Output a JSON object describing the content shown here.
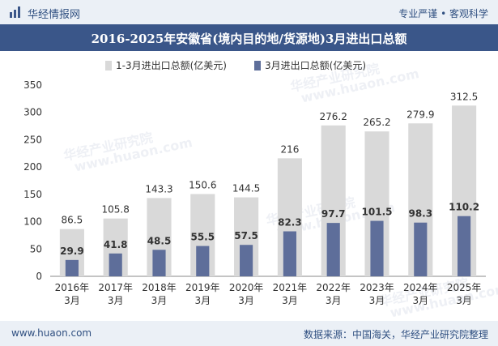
{
  "header": {
    "brand": "华经情报网",
    "tagline": "专业严谨 • 客观科学"
  },
  "title_bar": {
    "title": "2016-2025年安徽省(境内目的地/货源地)3月进出口总额"
  },
  "footer": {
    "website": "www.huaon.com",
    "source": "数据来源：中国海关，华经产业研究院整理"
  },
  "watermark": {
    "text_cn": "华经产业研究院",
    "text_url": "www.huaon.com"
  },
  "colors": {
    "total_series": "#d9d9d9",
    "march_series": "#5e6e9a",
    "title_bg": "#3a5689",
    "header_bg": "#ebf0f6"
  },
  "chart_data": {
    "type": "bar",
    "title": "2016-2025年安徽省(境内目的地/货源地)3月进出口总额",
    "categories": [
      "2016年\n3月",
      "2017年\n3月",
      "2018年\n3月",
      "2019年\n3月",
      "2020年\n3月",
      "2021年\n3月",
      "2022年\n3月",
      "2023年\n3月",
      "2024年\n3月",
      "2025年\n3月"
    ],
    "series": [
      {
        "name": "1-3月进出口总额(亿美元)",
        "values": [
          86.5,
          105.8,
          143.3,
          150.6,
          144.5,
          216,
          276.2,
          265.2,
          279.9,
          312.5
        ],
        "labels": [
          "86.5",
          "105.8",
          "143.3",
          "150.6",
          "144.5",
          "216",
          "276.2",
          "265.2",
          "279.9",
          "312.5"
        ],
        "color": "#d9d9d9"
      },
      {
        "name": "3月进出口总额(亿美元)",
        "values": [
          29.9,
          41.8,
          48.5,
          55.5,
          57.5,
          82.3,
          97.7,
          101.5,
          98.3,
          110.2
        ],
        "labels": [
          "29.9",
          "41.8",
          "48.5",
          "55.5",
          "57.5",
          "82.3",
          "97.7",
          "101.5",
          "98.3",
          "110.2"
        ],
        "color": "#5e6e9a"
      }
    ],
    "yticks": [
      "0",
      "50",
      "100",
      "150",
      "200",
      "250",
      "300",
      "350"
    ],
    "ylim": [
      0,
      350
    ],
    "legend_position": "top-center",
    "grid": false
  }
}
